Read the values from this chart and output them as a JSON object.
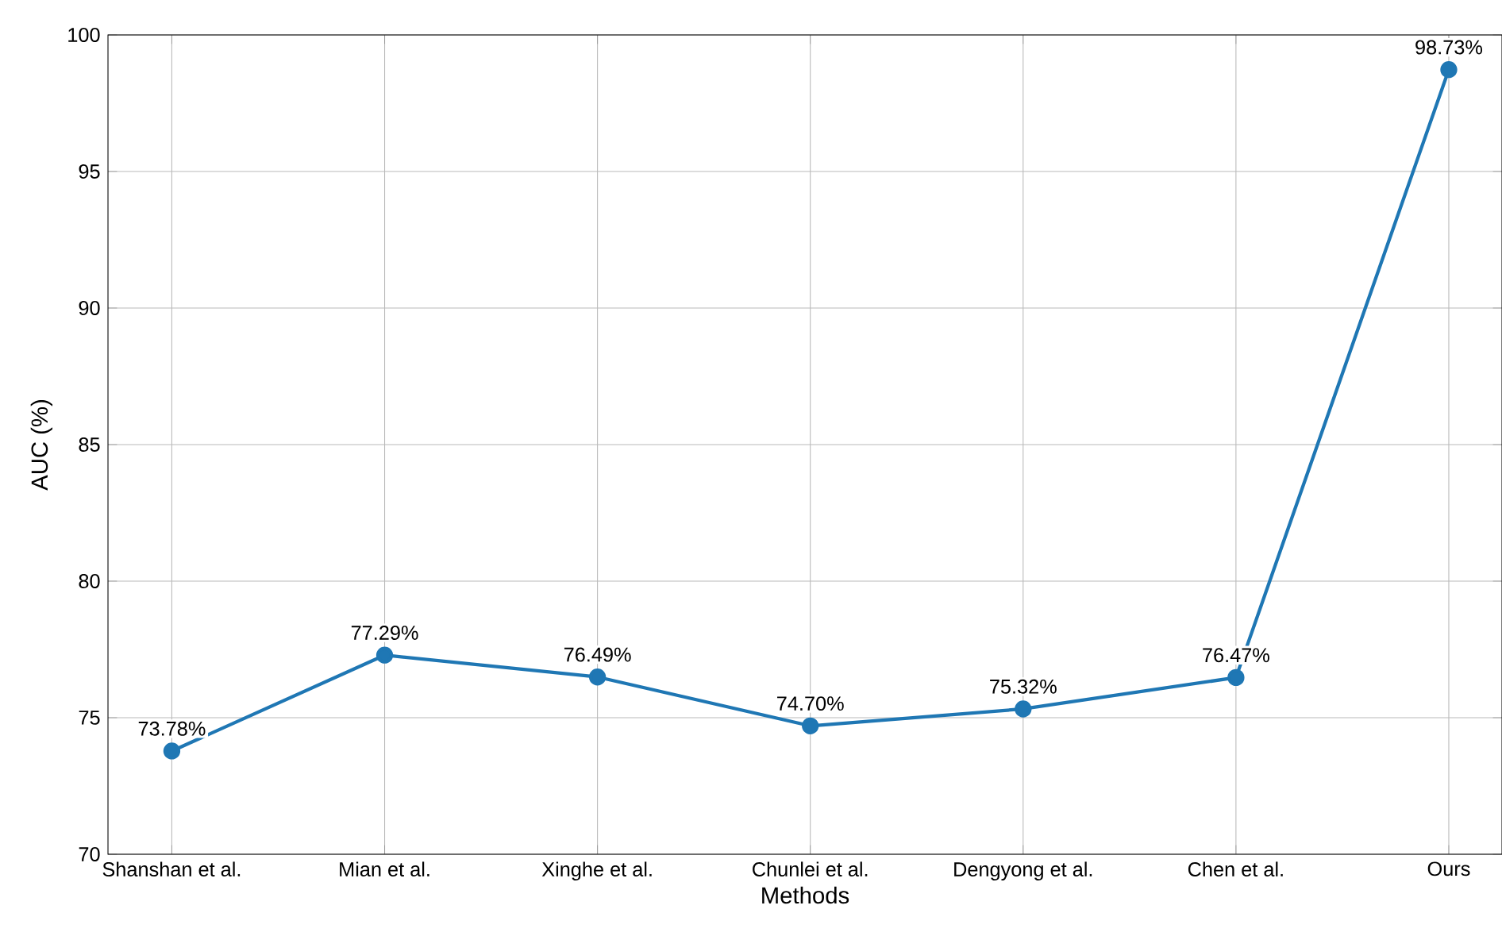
{
  "chart_data": {
    "type": "line",
    "xlabel": "Methods",
    "ylabel": "AUC (%)",
    "categories": [
      "Shanshan et al.",
      "Mian et al.",
      "Xinghe et al.",
      "Chunlei et al.",
      "Dengyong et al.",
      "Chen et al.",
      "Ours"
    ],
    "values": [
      73.78,
      77.29,
      76.49,
      74.7,
      75.32,
      76.47,
      98.73
    ],
    "value_labels": [
      "73.78%",
      "77.29%",
      "76.49%",
      "74.70%",
      "75.32%",
      "76.47%",
      "98.73%"
    ],
    "color": "#1f77b4",
    "marker": "circle",
    "line_style": "solid",
    "grid": true,
    "ylim": [
      70,
      100
    ],
    "yticks": [
      70,
      75,
      80,
      85,
      90,
      95,
      100
    ]
  }
}
